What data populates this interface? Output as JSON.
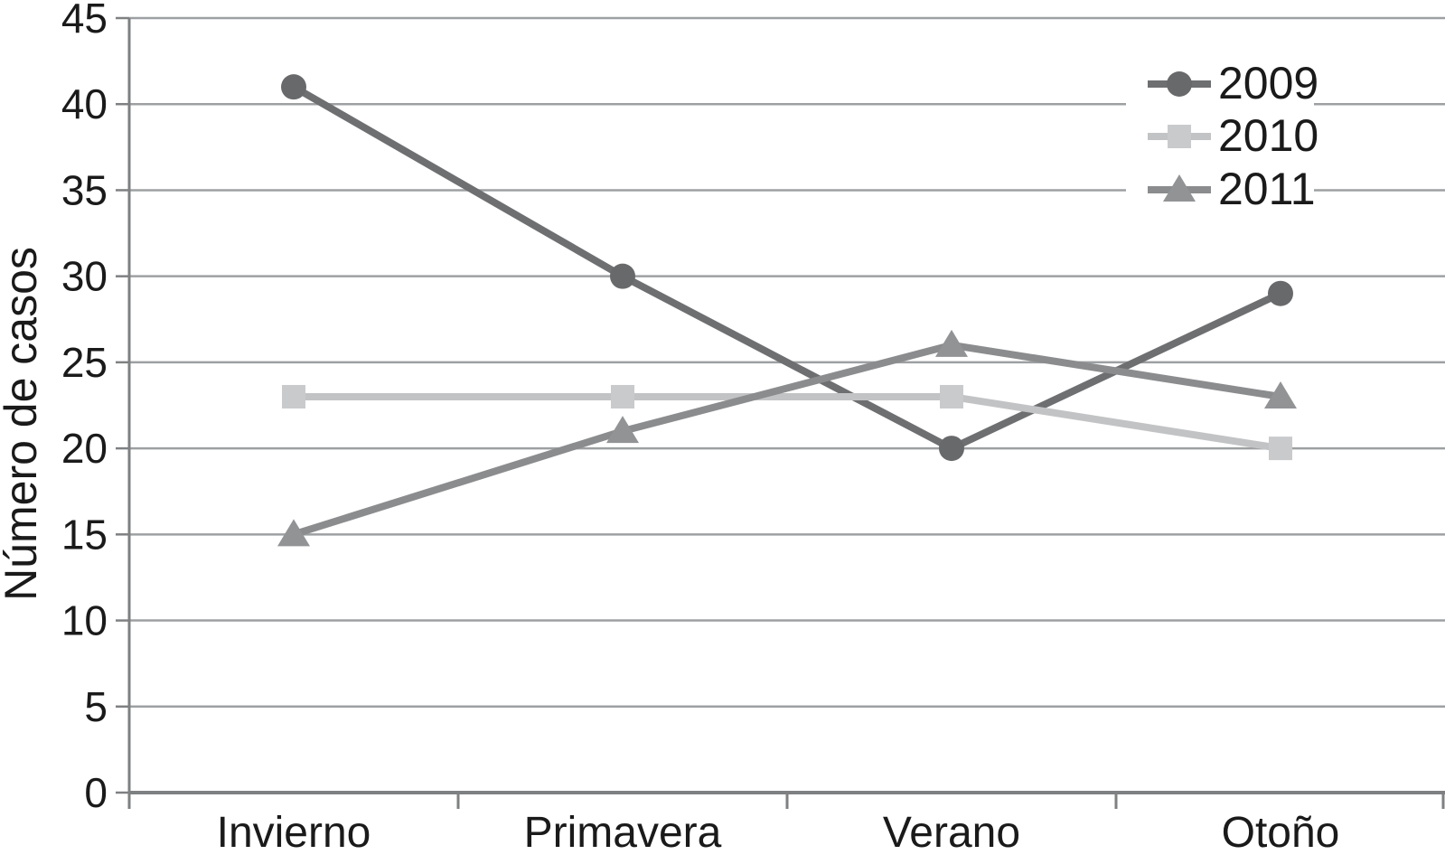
{
  "chart_data": {
    "type": "line",
    "title": "",
    "xlabel": "",
    "ylabel": "Número de casos",
    "categories": [
      "Invierno",
      "Primavera",
      "Verano",
      "Otoño"
    ],
    "series": [
      {
        "name": "2009",
        "marker": "circle",
        "line_color": "#6e6f71",
        "marker_color": "#68696b",
        "values": [
          41,
          30,
          20,
          29
        ]
      },
      {
        "name": "2010",
        "marker": "square",
        "line_color": "#c2c3c5",
        "marker_color": "#c9cacc",
        "values": [
          23,
          23,
          23,
          20
        ]
      },
      {
        "name": "2011",
        "marker": "triangle",
        "line_color": "#8b8c8e",
        "marker_color": "#929395",
        "values": [
          15,
          21,
          26,
          23
        ]
      }
    ],
    "ylim": [
      0,
      45
    ],
    "ytick_step": 5,
    "grid": true,
    "legend_position": "top-right",
    "colors": {
      "gridline": "#9da0a2",
      "axis": "#7e8082",
      "text": "#1a1a1a",
      "background": "#ffffff"
    }
  }
}
